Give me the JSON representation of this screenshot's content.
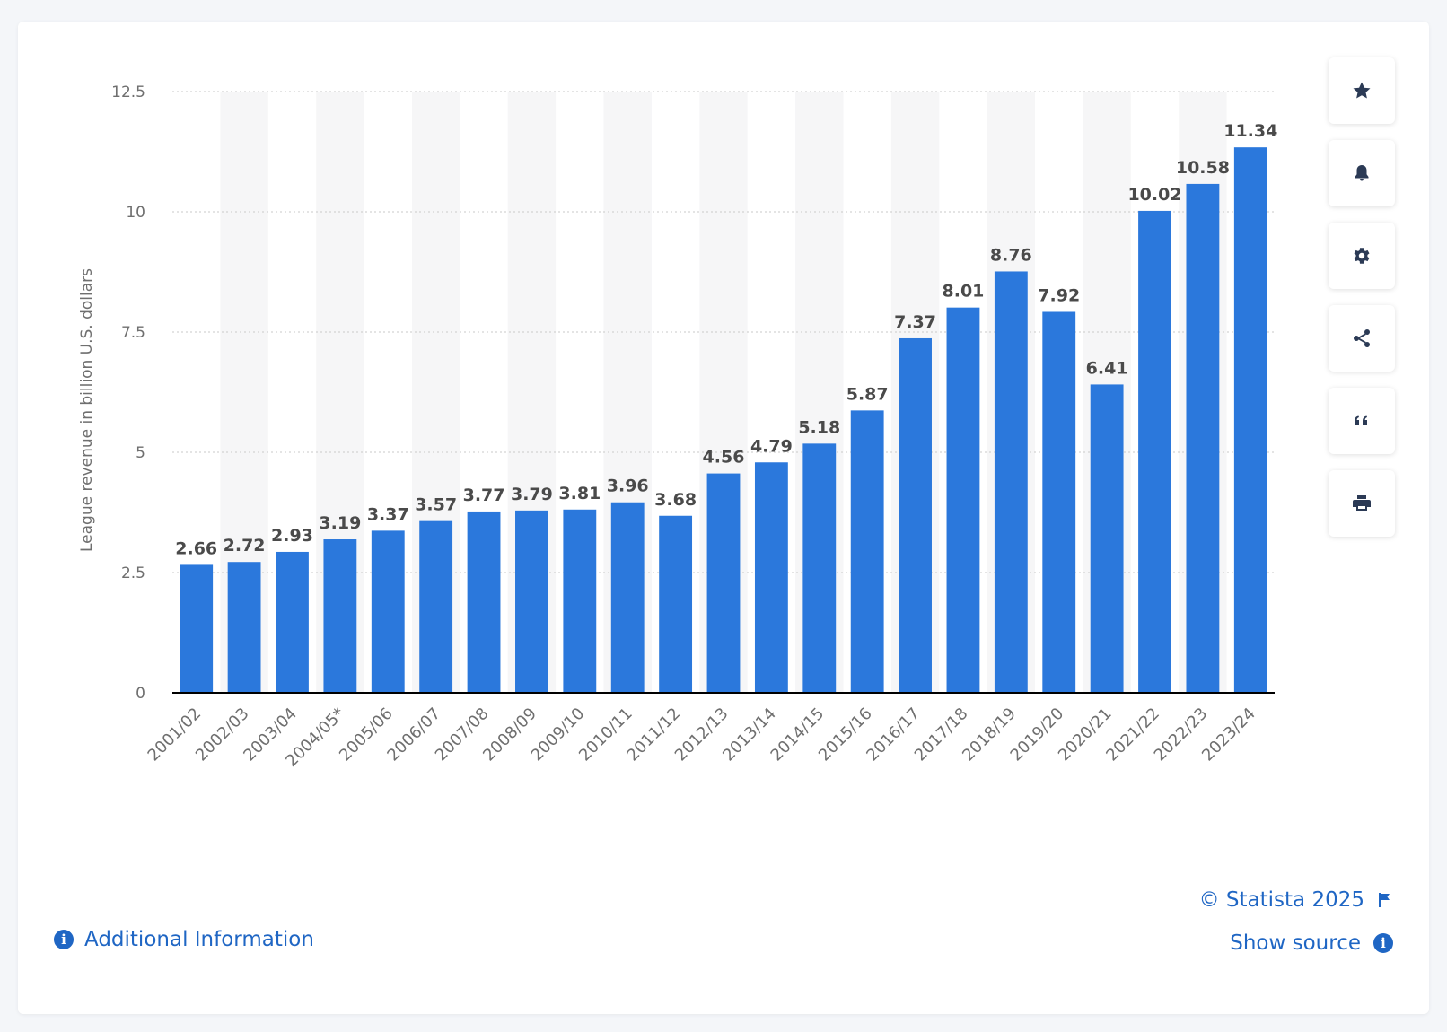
{
  "chart_data": {
    "type": "bar",
    "ylabel": "League revenue in billion U.S. dollars",
    "xlabel": "",
    "ylim": [
      0,
      12.5
    ],
    "yticks": [
      "0",
      "2.5",
      "5",
      "7.5",
      "10",
      "12.5"
    ],
    "ytick_values": [
      0,
      2.5,
      5,
      7.5,
      10,
      12.5
    ],
    "grid": true,
    "categories": [
      "2001/02",
      "2002/03",
      "2003/04",
      "2004/05*",
      "2005/06",
      "2006/07",
      "2007/08",
      "2008/09",
      "2009/10",
      "2010/11",
      "2011/12",
      "2012/13",
      "2013/14",
      "2014/15",
      "2015/16",
      "2016/17",
      "2017/18",
      "2018/19",
      "2019/20",
      "2020/21",
      "2021/22",
      "2022/23",
      "2023/24"
    ],
    "values": [
      2.66,
      2.72,
      2.93,
      3.19,
      3.37,
      3.57,
      3.77,
      3.79,
      3.81,
      3.96,
      3.68,
      4.56,
      4.79,
      5.18,
      5.87,
      7.37,
      8.01,
      8.76,
      7.92,
      6.41,
      10.02,
      10.58,
      11.34
    ],
    "labels": [
      "2.66",
      "2.72",
      "2.93",
      "3.19",
      "3.37",
      "3.57",
      "3.77",
      "3.79",
      "3.81",
      "3.96",
      "3.68",
      "4.56",
      "4.79",
      "5.18",
      "5.87",
      "7.37",
      "8.01",
      "8.76",
      "7.92",
      "6.41",
      "10.02",
      "10.58",
      "11.34"
    ]
  },
  "colors": {
    "bar": "#2b78dc",
    "band": "#f6f6f7",
    "grid": "#c9c9c9",
    "axis": "#000000",
    "tick_text": "#6f6f6f",
    "value_text": "#4a4a4a",
    "link": "#1f66c4"
  },
  "toolbar": {
    "items": [
      {
        "name": "star-icon"
      },
      {
        "name": "bell-icon"
      },
      {
        "name": "gear-icon"
      },
      {
        "name": "share-icon"
      },
      {
        "name": "quote-icon"
      },
      {
        "name": "print-icon"
      }
    ]
  },
  "footer": {
    "additional_info": "Additional Information",
    "copyright": "© Statista 2025",
    "show_source": "Show source"
  }
}
